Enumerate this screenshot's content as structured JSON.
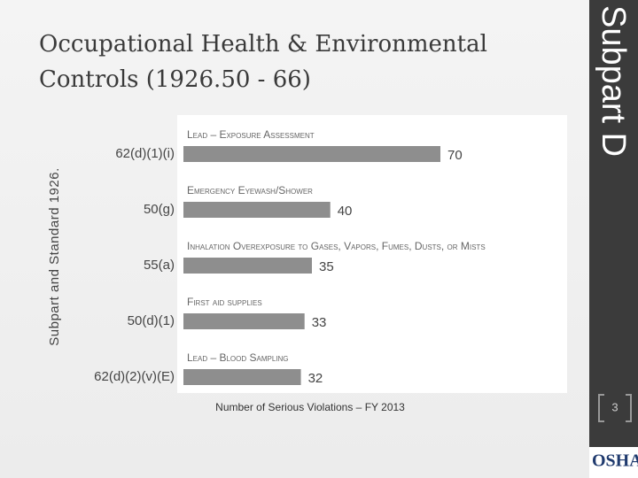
{
  "title": "Occupational Health & Environmental Controls (1926.50 - 66)",
  "sidebar": "Subpart D",
  "page_number": "3",
  "logo": "OSHA",
  "chart_data": {
    "type": "bar",
    "orientation": "horizontal",
    "y_label": "Subpart and Standard 1926.",
    "x_label": "Number of Serious Violations – FY 2013",
    "categories": [
      "62(d)(1)(i)",
      "50(g)",
      "55(a)",
      "50(d)(1)",
      "62(d)(2)(v)(E)"
    ],
    "descriptions": [
      "Lead – Exposure Assessment",
      "Emergency Eyewash/Shower",
      "Inhalation Overexposure to Gases, Vapors, Fumes, Dusts, or Mists",
      "First aid supplies",
      "Lead – Blood Sampling"
    ],
    "values": [
      70,
      40,
      35,
      33,
      32
    ],
    "color": "#8e8e8e"
  }
}
